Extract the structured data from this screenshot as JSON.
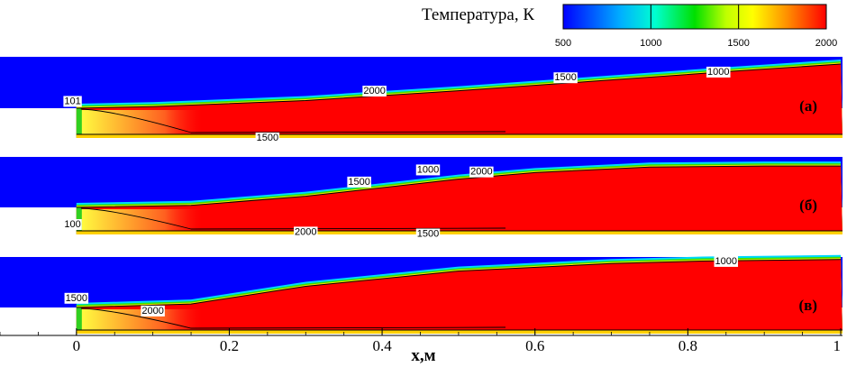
{
  "chart_data": {
    "type": "heatmap",
    "colorbar": {
      "title": "Температура, К",
      "min": 500,
      "max": 2000,
      "ticks": [
        500,
        1000,
        1500,
        2000
      ],
      "colors": [
        "#0000ff",
        "#00ffff",
        "#00ff00",
        "#ffff00",
        "#ff0000"
      ]
    },
    "xaxis": {
      "label": "x,м",
      "range": [
        -0.1,
        1.0
      ],
      "ticks": [
        0,
        0.2,
        0.4,
        0.6,
        0.8,
        1
      ],
      "tick_labels": [
        "0",
        "0.2",
        "0.4",
        "0.6",
        "0.8",
        "1"
      ]
    },
    "panels": [
      {
        "label": "(а)",
        "flame_front": [
          [
            0.0,
            0.0
          ],
          [
            0.1,
            0.03
          ],
          [
            0.3,
            0.15
          ],
          [
            0.5,
            0.34
          ],
          [
            0.7,
            0.55
          ],
          [
            0.85,
            0.71
          ],
          [
            1.0,
            0.86
          ]
        ],
        "contour_labels": [
          {
            "text": "101",
            "x": -0.005,
            "y": 0.15
          },
          {
            "text": "2000",
            "x": 0.39,
            "y": 0.35
          },
          {
            "text": "1500",
            "x": 0.64,
            "y": 0.61
          },
          {
            "text": "1000",
            "x": 0.84,
            "y": 0.72
          },
          {
            "text": "1500",
            "x": 0.25,
            "y": -0.97
          }
        ]
      },
      {
        "label": "(б)",
        "flame_front": [
          [
            0.0,
            0.0
          ],
          [
            0.15,
            0.04
          ],
          [
            0.3,
            0.22
          ],
          [
            0.5,
            0.56
          ],
          [
            0.6,
            0.69
          ],
          [
            0.75,
            0.8
          ],
          [
            0.9,
            0.82
          ],
          [
            1.0,
            0.82
          ]
        ],
        "contour_labels": [
          {
            "text": "100",
            "x": -0.005,
            "y": -0.6
          },
          {
            "text": "1500",
            "x": 0.37,
            "y": 0.52
          },
          {
            "text": "1000",
            "x": 0.46,
            "y": 0.76
          },
          {
            "text": "2000",
            "x": 0.53,
            "y": 0.72
          },
          {
            "text": "2000",
            "x": 0.3,
            "y": -0.88
          },
          {
            "text": "1500",
            "x": 0.46,
            "y": -0.95
          }
        ]
      },
      {
        "label": "(в)",
        "flame_front": [
          [
            0.0,
            0.0
          ],
          [
            0.15,
            0.07
          ],
          [
            0.3,
            0.42
          ],
          [
            0.5,
            0.72
          ],
          [
            0.7,
            0.87
          ],
          [
            0.82,
            0.92
          ],
          [
            1.0,
            0.95
          ]
        ],
        "contour_labels": [
          {
            "text": "1500",
            "x": 0.0,
            "y": 0.2
          },
          {
            "text": "2000",
            "x": 0.1,
            "y": -0.1
          },
          {
            "text": "1000",
            "x": 0.85,
            "y": 0.93
          }
        ]
      }
    ]
  }
}
